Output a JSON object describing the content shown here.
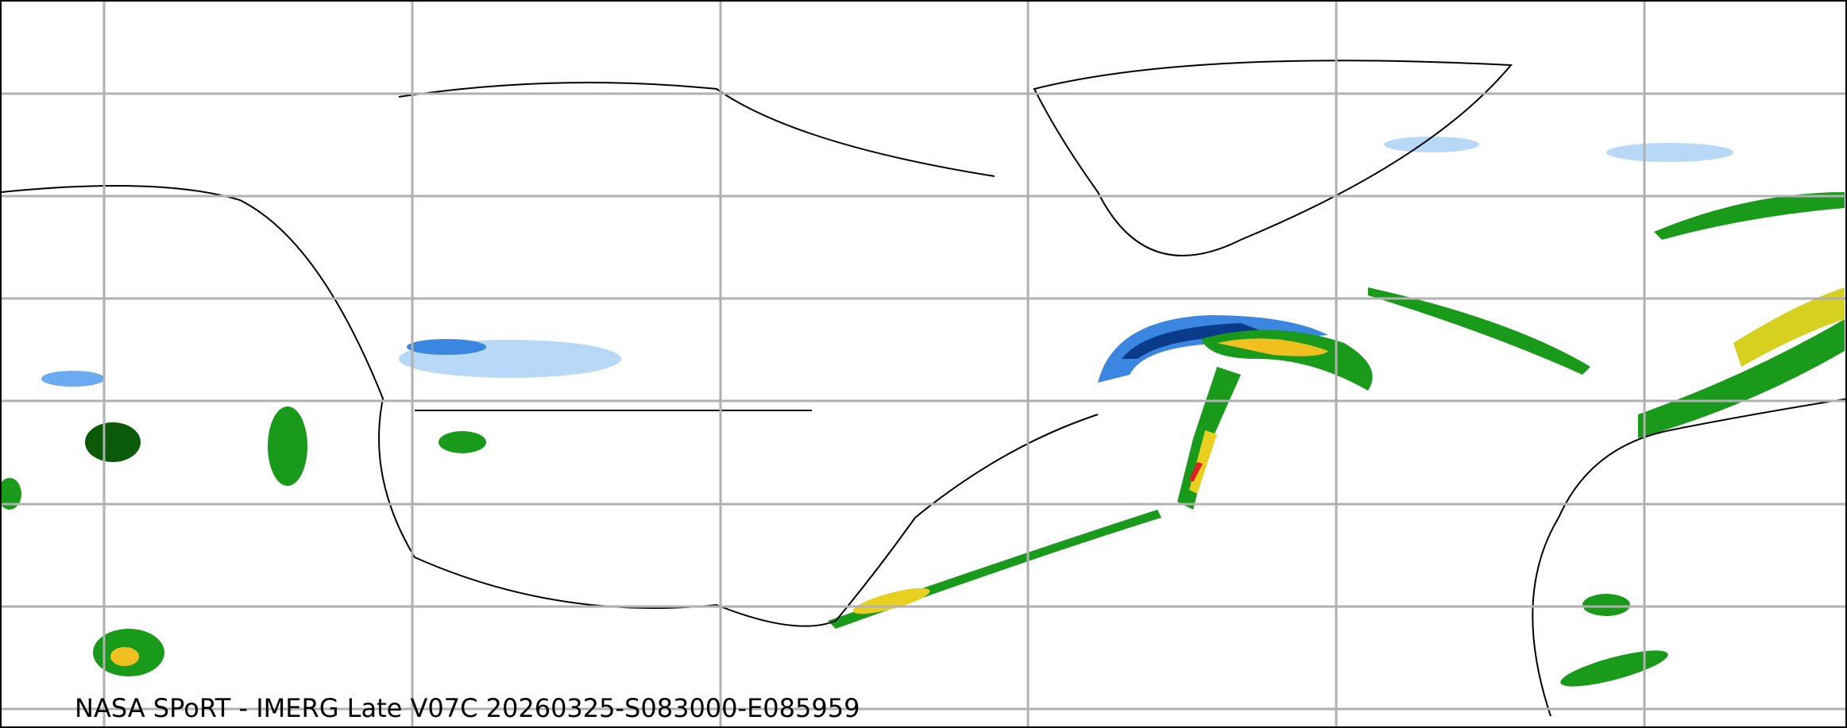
{
  "caption": "NASA SPoRT - IMERG Late V07C 20260325-S083000-E085959",
  "colors": {
    "gridline": "#b0b0b0",
    "coastline": "#000000",
    "light_snow": "#b8d8f8",
    "snow": "#3a86e0",
    "heavy_snow": "#0a3a8a",
    "light_rain": "#1a9a1a",
    "moderate_rain": "#f0f020",
    "heavy_rain": "#e02020",
    "dark_rain": "#0a5a0a"
  }
}
